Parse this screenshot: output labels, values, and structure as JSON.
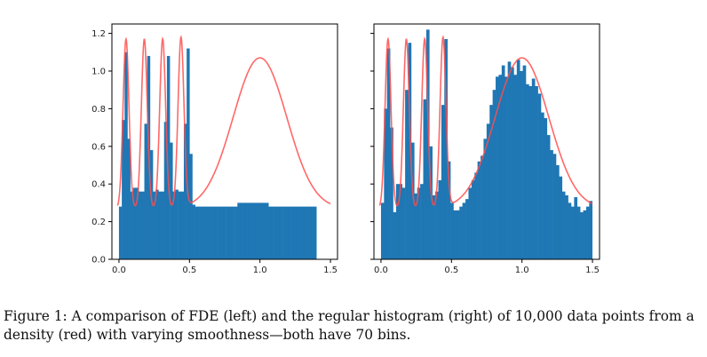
{
  "caption": {
    "label": "Figure 1:",
    "text": "A comparison of FDE (left) and the regular histogram (right) of 10,000 data points from a density (red) with varying smoothness—both have 70 bins."
  },
  "colors": {
    "bars": "#1f77b4",
    "density": "#ff4d4d",
    "axes": "#000000"
  },
  "chart_data": [
    {
      "type": "bar",
      "subtype": "histogram",
      "panel": "left",
      "xlim": [
        -0.05,
        1.55
      ],
      "ylim": [
        0.0,
        1.25
      ],
      "xticks": [
        "0.0",
        "0.5",
        "1.0",
        "1.5"
      ],
      "yticks": [
        "0.0",
        "0.2",
        "0.4",
        "0.6",
        "0.8",
        "1.0",
        "1.2"
      ],
      "bin_start": 0.0,
      "bin_width": 0.02,
      "values": [
        0.28,
        0.74,
        1.1,
        0.64,
        0.36,
        0.38,
        0.38,
        0.36,
        0.36,
        0.72,
        1.08,
        0.58,
        0.36,
        0.37,
        0.36,
        0.36,
        0.73,
        1.08,
        0.62,
        0.36,
        0.37,
        0.36,
        0.36,
        0.72,
        1.12,
        0.56,
        0.29,
        0.28,
        0.28,
        0.28,
        0.28,
        0.28,
        0.28,
        0.28,
        0.28,
        0.28,
        0.28,
        0.28,
        0.28,
        0.28,
        0.28,
        0.28,
        0.3,
        0.3,
        0.3,
        0.3,
        0.3,
        0.3,
        0.3,
        0.3,
        0.3,
        0.3,
        0.3,
        0.28,
        0.28,
        0.28,
        0.28,
        0.28,
        0.28,
        0.28,
        0.28,
        0.28,
        0.28,
        0.28,
        0.28,
        0.28,
        0.28,
        0.28,
        0.28,
        0.28
      ],
      "density_curve": {
        "x_range": [
          -0.01,
          1.5
        ],
        "description": "red line"
      }
    },
    {
      "type": "bar",
      "subtype": "histogram",
      "panel": "right",
      "xlim": [
        -0.05,
        1.55
      ],
      "ylim": [
        0.0,
        1.25
      ],
      "xticks": [
        "0.0",
        "0.5",
        "1.0",
        "1.5"
      ],
      "bin_start": 0.0,
      "bin_width": 0.0214,
      "values": [
        0.3,
        0.8,
        1.12,
        0.7,
        0.25,
        0.4,
        0.4,
        0.38,
        0.9,
        1.15,
        0.62,
        0.35,
        0.38,
        0.4,
        0.85,
        1.22,
        0.6,
        0.34,
        0.36,
        0.42,
        0.82,
        1.17,
        0.52,
        0.3,
        0.26,
        0.26,
        0.28,
        0.3,
        0.32,
        0.38,
        0.42,
        0.46,
        0.52,
        0.55,
        0.64,
        0.72,
        0.82,
        0.9,
        0.97,
        0.98,
        1.03,
        0.97,
        1.05,
        1.02,
        0.98,
        1.06,
        1.0,
        1.03,
        0.93,
        0.92,
        0.96,
        0.92,
        0.88,
        0.78,
        0.75,
        0.66,
        0.58,
        0.56,
        0.5,
        0.44,
        0.36,
        0.34,
        0.3,
        0.28,
        0.33,
        0.28,
        0.25,
        0.26,
        0.28,
        0.31
      ],
      "density_curve": {
        "x_range": [
          -0.01,
          1.5
        ],
        "description": "red line"
      }
    }
  ]
}
